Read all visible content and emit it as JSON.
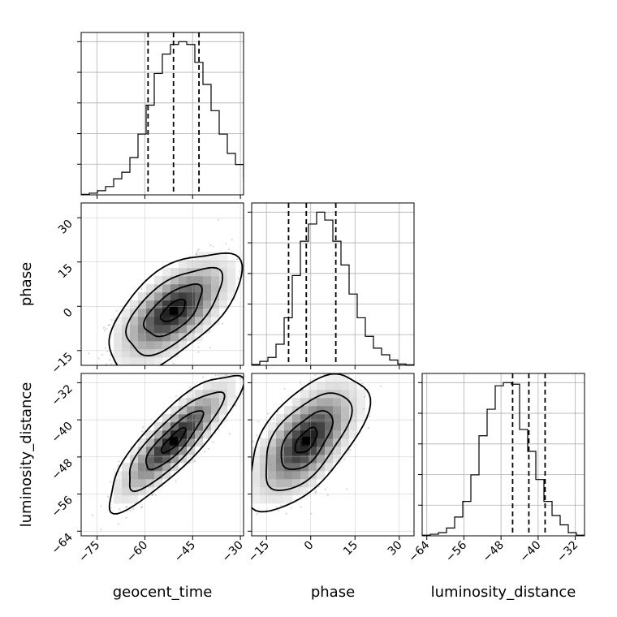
{
  "chart_data": {
    "type": "corner",
    "parameters": [
      "geocent_time",
      "phase",
      "luminosity_distance"
    ],
    "axes": {
      "geocent_time": {
        "label": "geocent_time",
        "range": [
          -80,
          -29
        ],
        "ticks": [
          -75,
          -60,
          -45,
          -30
        ],
        "tick_labels": [
          "−75",
          "−60",
          "−45",
          "−30"
        ],
        "quantiles": [
          -59,
          -51,
          -43
        ]
      },
      "phase": {
        "label": "phase",
        "range": [
          -20,
          35
        ],
        "ticks": [
          -15,
          0,
          15,
          30
        ],
        "tick_labels": [
          "−15",
          "0",
          "15",
          "30"
        ],
        "quantiles": [
          -7.5,
          -1.5,
          8.5
        ]
      },
      "luminosity_distance": {
        "label": "luminosity_distance",
        "range": [
          -65,
          -30
        ],
        "ticks": [
          -64,
          -56,
          -48,
          -40,
          -32
        ],
        "tick_labels": [
          "−64",
          "−56",
          "−48",
          "−40",
          "−32"
        ],
        "quantiles": [
          -45.5,
          -42,
          -38.5
        ]
      }
    },
    "histograms": [
      {
        "param": "geocent_time",
        "bin_start": -80,
        "bin_width": 2.55,
        "counts": [
          0.2,
          0.6,
          1.5,
          3.0,
          5.8,
          8.2,
          13.5,
          22.0,
          32.5,
          44.0,
          51.0,
          54.5,
          55.5,
          54.5,
          48.0,
          40.0,
          30.5,
          22.0,
          15.0,
          11.0,
          6.5,
          3.5,
          1.2,
          0.3
        ]
      },
      {
        "param": "phase",
        "bin_start": -20,
        "bin_width": 2.75,
        "counts": [
          0.3,
          1.5,
          3.0,
          8.0,
          18.0,
          34.0,
          47.0,
          53.5,
          58.0,
          55.0,
          47.0,
          38.0,
          27.0,
          18.0,
          11.0,
          6.5,
          4.0,
          2.0,
          0.5,
          0.2
        ]
      },
      {
        "param": "luminosity_distance",
        "bin_start": -65,
        "bin_width": 1.75,
        "counts": [
          0.2,
          0.5,
          1.0,
          2.5,
          6.0,
          11.0,
          19.5,
          32.0,
          40.5,
          48.0,
          49.0,
          48.5,
          34.0,
          27.0,
          18.0,
          11.0,
          6.5,
          3.5,
          1.0,
          0.2
        ]
      }
    ],
    "scatter_panels": [
      {
        "x": "geocent_time",
        "y": "phase",
        "mean": [
          -51,
          -1.5
        ],
        "std": [
          8.5,
          8.3
        ],
        "corr": 0.62
      },
      {
        "x": "geocent_time",
        "y": "luminosity_distance",
        "mean": [
          -51,
          -44.5
        ],
        "std": [
          8.5,
          6.0
        ],
        "corr": 0.85
      },
      {
        "x": "phase",
        "y": "luminosity_distance",
        "mean": [
          -1.5,
          -44.5
        ],
        "std": [
          8.3,
          6.0
        ],
        "corr": 0.6
      }
    ],
    "grid": true,
    "legend": "none"
  }
}
